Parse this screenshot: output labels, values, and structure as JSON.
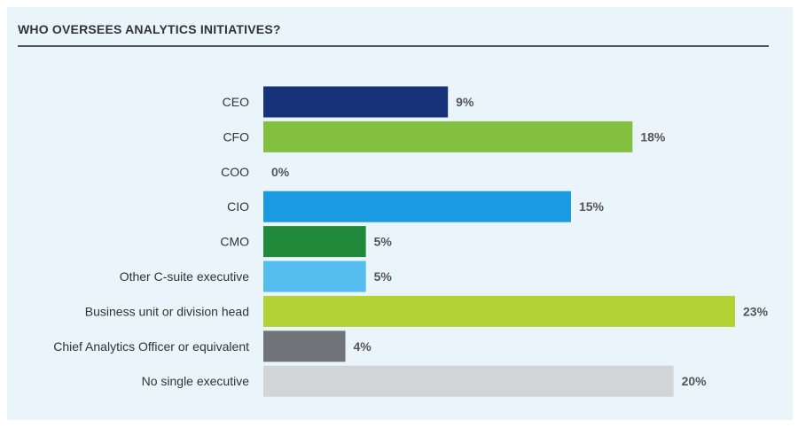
{
  "chart_data": {
    "type": "bar",
    "orientation": "horizontal",
    "title": "WHO OVERSEES ANALYTICS INITIATIVES?",
    "categories": [
      "CEO",
      "CFO",
      "COO",
      "CIO",
      "CMO",
      "Other C-suite executive",
      "Business unit or division head",
      "Chief Analytics Officer or equivalent",
      "No single executive"
    ],
    "values": [
      9,
      18,
      0,
      15,
      5,
      5,
      23,
      4,
      20
    ],
    "value_labels": [
      "9%",
      "18%",
      "0%",
      "15%",
      "5%",
      "5%",
      "23%",
      "4%",
      "20%"
    ],
    "colors": [
      "#17317a",
      "#84c03f",
      "#84c03f",
      "#1a9ae0",
      "#208a3a",
      "#55bdee",
      "#b3d335",
      "#707478",
      "#d3d4d5"
    ],
    "unit": "%",
    "xlim": [
      0,
      23
    ],
    "grid": false,
    "legend": false
  }
}
